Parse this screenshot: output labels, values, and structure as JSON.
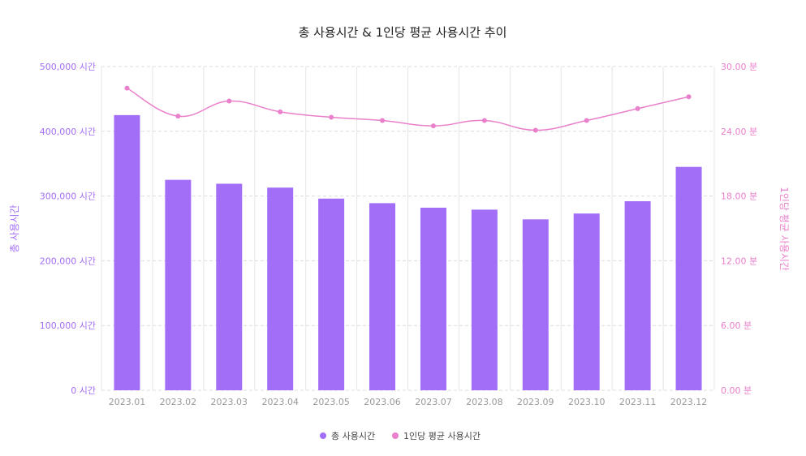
{
  "chart_data": {
    "type": "bar",
    "title": "총 사용시간 & 1인당 평균 사용시간 추이",
    "categories": [
      "2023.01",
      "2023.02",
      "2023.03",
      "2023.04",
      "2023.05",
      "2023.06",
      "2023.07",
      "2023.08",
      "2023.09",
      "2023.10",
      "2023.11",
      "2023.12"
    ],
    "series": [
      {
        "name": "총 사용시간",
        "type": "bar",
        "axis": "left",
        "color": "#a36ef7",
        "values": [
          425000,
          325000,
          319000,
          313000,
          296000,
          289000,
          282000,
          279000,
          264000,
          273000,
          292000,
          345000
        ]
      },
      {
        "name": "1인당 평균 사용시간",
        "type": "line",
        "axis": "right",
        "color": "#ea7fcb",
        "values": [
          28.0,
          25.4,
          26.8,
          25.8,
          25.3,
          25.0,
          24.5,
          25.0,
          24.1,
          25.0,
          26.1,
          27.2
        ]
      }
    ],
    "y_left": {
      "label": "총 사용시간",
      "min": 0,
      "max": 500000,
      "ticks": [
        "0 시간",
        "100,000 시간",
        "200,000 시간",
        "300,000 시간",
        "400,000 시간",
        "500,000 시간"
      ],
      "color": "#a36ef7"
    },
    "y_right": {
      "label": "1인당 평균 사용시간",
      "min": 0,
      "max": 30,
      "ticks": [
        "0.00 분",
        "6.00 분",
        "12.00 분",
        "18.00 분",
        "24.00 분",
        "30.00 분"
      ],
      "color": "#ea7fcb"
    },
    "grid": true,
    "legend_position": "bottom"
  }
}
